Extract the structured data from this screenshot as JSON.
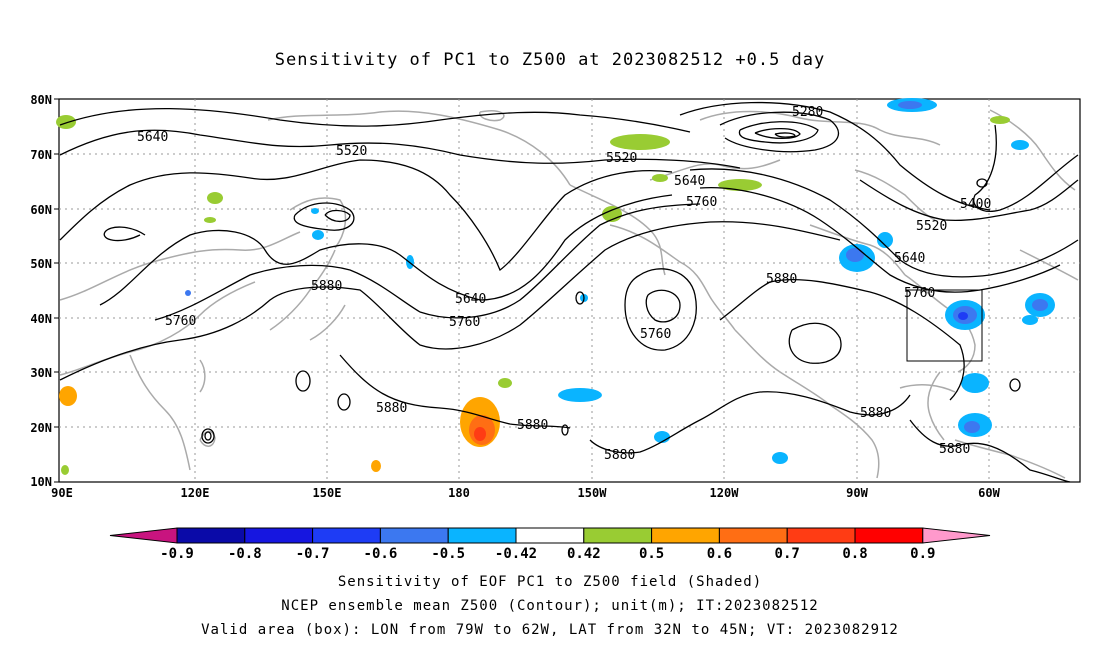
{
  "title": "Sensitivity of PC1 to Z500 at 2023082512 +0.5 day",
  "map": {
    "lon_range": [
      "90E",
      "55W"
    ],
    "lat_range": [
      "10N",
      "80N"
    ],
    "lat_ticks": [
      {
        "lat": 80,
        "label": "80N"
      },
      {
        "lat": 70,
        "label": "70N"
      },
      {
        "lat": 60,
        "label": "60N"
      },
      {
        "lat": 50,
        "label": "50N"
      },
      {
        "lat": 40,
        "label": "40N"
      },
      {
        "lat": 30,
        "label": "30N"
      },
      {
        "lat": 20,
        "label": "20N"
      },
      {
        "lat": 10,
        "label": "10N"
      }
    ],
    "lon_ticks": [
      {
        "lon": 90,
        "label": "90E"
      },
      {
        "lon": 120,
        "label": "120E"
      },
      {
        "lon": 150,
        "label": "150E"
      },
      {
        "lon": 180,
        "label": "180"
      },
      {
        "lon": 210,
        "label": "150W"
      },
      {
        "lon": 240,
        "label": "120W"
      },
      {
        "lon": 270,
        "label": "90W"
      },
      {
        "lon": 300,
        "label": "60W"
      }
    ],
    "valid_box": {
      "lon_from": "79W",
      "lon_to": "62W",
      "lat_from": "32N",
      "lat_to": "45N"
    },
    "contour_labels": [
      "5280",
      "5400",
      "5520",
      "5520",
      "5520",
      "5640",
      "5640",
      "5640",
      "5640",
      "5760",
      "5760",
      "5760",
      "5760",
      "5760",
      "5880",
      "5880",
      "5880",
      "5880",
      "5880",
      "5880",
      "5880"
    ]
  },
  "colorbar": {
    "labels": [
      "-0.9",
      "-0.8",
      "-0.7",
      "-0.6",
      "-0.5",
      "-0.42",
      "0.42",
      "0.5",
      "0.6",
      "0.7",
      "0.8",
      "0.9"
    ],
    "colors": [
      "#0a0aa8",
      "#1616e0",
      "#1e3cf5",
      "#3c78f0",
      "#0ab4ff",
      "#ffffff",
      "#99cc33",
      "#ffa500",
      "#ff6e14",
      "#ff3c14",
      "#ff0000"
    ],
    "under_color": "#c8147f",
    "over_color": "#ff99cc"
  },
  "footer": {
    "line1": "Sensitivity of EOF PC1 to Z500 field (Shaded)",
    "line2": "NCEP ensemble mean Z500 (Contour); unit(m); IT:2023082512",
    "line3": "Valid area (box): LON from 79W to 62W, LAT from 32N to 45N; VT: 2023082912"
  }
}
